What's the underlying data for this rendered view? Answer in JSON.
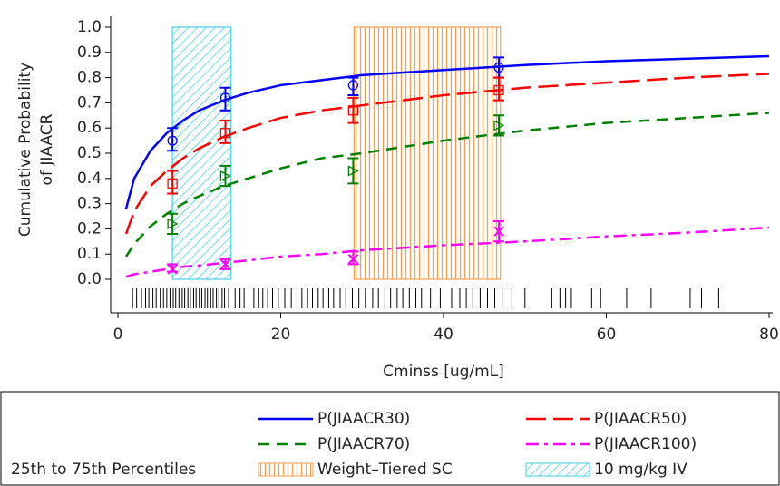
{
  "chart_data": {
    "type": "line",
    "x_label": "Cminss [ug/mL]",
    "y_label": [
      "Cumulative Probability",
      "of JIAACR"
    ],
    "x": [
      1,
      2,
      4,
      6,
      8,
      10,
      13,
      16,
      20,
      25,
      30,
      40,
      50,
      60,
      70,
      80
    ],
    "obs_x": [
      6.7,
      13.2,
      28.9,
      46.8
    ],
    "series": [
      {
        "name": "P(JIAACR30)",
        "color": "#0000ff",
        "linestyle": "solid",
        "marker": "circle",
        "values": [
          0.28,
          0.4,
          0.51,
          0.58,
          0.63,
          0.67,
          0.71,
          0.74,
          0.77,
          0.79,
          0.81,
          0.83,
          0.85,
          0.865,
          0.875,
          0.885
        ],
        "observed": [
          0.55,
          0.72,
          0.77,
          0.84
        ],
        "lower": [
          0.51,
          0.67,
          0.73,
          0.8
        ],
        "upper": [
          0.6,
          0.76,
          0.8,
          0.88
        ]
      },
      {
        "name": "P(JIAACR50)",
        "color": "#ff0000",
        "linestyle": "long-dash",
        "marker": "square",
        "values": [
          0.18,
          0.27,
          0.37,
          0.43,
          0.48,
          0.52,
          0.565,
          0.6,
          0.64,
          0.67,
          0.69,
          0.73,
          0.76,
          0.78,
          0.8,
          0.815
        ],
        "observed": [
          0.38,
          0.58,
          0.67,
          0.75
        ],
        "lower": [
          0.34,
          0.54,
          0.62,
          0.71
        ],
        "upper": [
          0.43,
          0.63,
          0.72,
          0.8
        ]
      },
      {
        "name": "P(JIAACR70)",
        "color": "#008000",
        "linestyle": "dash",
        "marker": "triangle",
        "values": [
          0.09,
          0.14,
          0.21,
          0.26,
          0.3,
          0.33,
          0.37,
          0.4,
          0.44,
          0.48,
          0.5,
          0.55,
          0.59,
          0.62,
          0.64,
          0.66
        ],
        "observed": [
          0.22,
          0.41,
          0.43,
          0.61
        ],
        "lower": [
          0.18,
          0.37,
          0.38,
          0.57
        ],
        "upper": [
          0.26,
          0.45,
          0.48,
          0.65
        ]
      },
      {
        "name": "P(JIAACR100)",
        "color": "#ff00ff",
        "linestyle": "dash-dot",
        "marker": "x",
        "values": [
          0.01,
          0.02,
          0.03,
          0.04,
          0.05,
          0.055,
          0.065,
          0.075,
          0.09,
          0.1,
          0.115,
          0.135,
          0.15,
          0.17,
          0.185,
          0.205
        ],
        "observed": [
          0.04,
          0.06,
          0.08,
          0.19
        ],
        "lower": [
          0.03,
          0.04,
          0.06,
          0.15
        ],
        "upper": [
          0.06,
          0.08,
          0.11,
          0.23
        ]
      }
    ],
    "regions": [
      {
        "name": "Weight–Tiered SC",
        "x_range": [
          29,
          47
        ],
        "color": "#f0a050",
        "pattern": "vertical"
      },
      {
        "name": "10 mg/kg IV",
        "x_range": [
          6.7,
          13.9
        ],
        "color": "#40d0e0",
        "pattern": "diagonal"
      }
    ],
    "legend_label": "25th to 75th Percentiles",
    "rug": [
      1.8,
      2.3,
      2.9,
      3.4,
      3.8,
      4.3,
      4.7,
      5.2,
      5.6,
      6.0,
      6.4,
      6.8,
      7.1,
      7.5,
      7.9,
      8.2,
      8.6,
      8.9,
      9.3,
      9.6,
      10.0,
      10.3,
      10.7,
      11.0,
      11.4,
      11.7,
      12.1,
      12.4,
      12.8,
      13.1,
      13.6,
      14.4,
      15.0,
      15.5,
      16.1,
      16.7,
      17.3,
      17.8,
      18.4,
      19.0,
      19.7,
      20.5,
      21.3,
      22.0,
      22.6,
      23.3,
      23.9,
      24.6,
      25.2,
      25.9,
      26.5,
      27.3,
      28.0,
      28.8,
      29.6,
      30.4,
      31.3,
      32.0,
      32.8,
      33.5,
      34.3,
      35.0,
      35.8,
      36.6,
      37.3,
      38.4,
      39.6,
      41.0,
      42.0,
      42.8,
      43.6,
      44.5,
      45.4,
      46.3,
      47.2,
      48.4,
      50.0,
      53.3,
      54.3,
      55.0,
      55.7,
      58.2,
      59.3,
      62.5,
      65.5,
      70.3,
      71.7,
      73.8
    ],
    "xlim": [
      0,
      80
    ],
    "ylim": [
      0,
      1
    ],
    "xticks": [
      0,
      20,
      40,
      60,
      80
    ],
    "yticks": [
      {
        "value": 0,
        "label": "0.0"
      },
      0.1,
      0.2,
      0.3,
      0.4,
      0.5,
      0.6,
      0.7,
      0.8,
      0.9,
      {
        "value": 1,
        "label": "1.0"
      }
    ]
  }
}
